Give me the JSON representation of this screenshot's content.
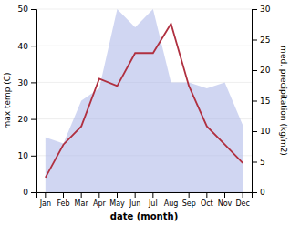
{
  "chart_data": {
    "type": "line",
    "x_label": "date (month)",
    "y_label": "max temp (C)",
    "y2_label": "med. precipitation (kg/m2)",
    "categories": [
      "Jan",
      "Feb",
      "Mar",
      "Apr",
      "May",
      "Jun",
      "Jul",
      "Aug",
      "Sep",
      "Oct",
      "Nov",
      "Dec"
    ],
    "series": [
      {
        "type": "area",
        "color": "#aab4e8",
        "axis": "y2",
        "values": [
          9,
          8,
          15,
          17,
          30,
          27,
          30,
          18,
          18,
          17,
          18,
          11
        ]
      },
      {
        "type": "line",
        "color": "#b03040",
        "values": [
          4,
          13,
          18,
          31,
          29,
          38,
          38,
          46,
          29,
          18,
          13,
          8
        ]
      }
    ],
    "ylim": [
      0,
      50
    ],
    "yticks": [
      0,
      10,
      20,
      30,
      40,
      50
    ],
    "y2lim": [
      0,
      30
    ],
    "y2ticks": [
      0,
      5,
      10,
      15,
      20,
      25,
      30
    ],
    "grid": true
  }
}
